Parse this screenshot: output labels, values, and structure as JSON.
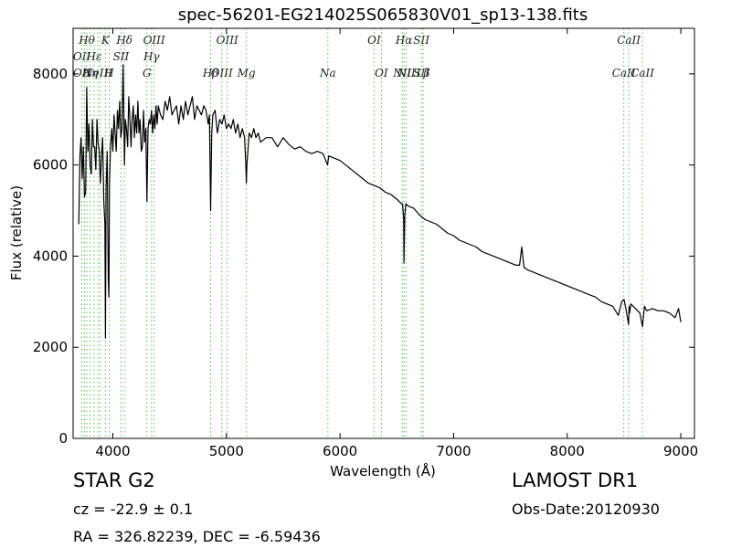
{
  "chart_data": {
    "type": "line",
    "title": "spec-56201-EG214025S065830V01_sp13-138.fits",
    "xlabel": "Wavelength (Å)",
    "ylabel": "Flux (relative)",
    "xlim": [
      3650,
      9120
    ],
    "ylim": [
      0,
      9000
    ],
    "xticks": [
      4000,
      5000,
      6000,
      7000,
      8000,
      9000
    ],
    "yticks": [
      0,
      2000,
      4000,
      6000,
      8000
    ],
    "grid": false,
    "series": [
      {
        "color": "#000000",
        "x": [
          3700,
          3710,
          3720,
          3730,
          3740,
          3750,
          3760,
          3770,
          3780,
          3790,
          3800,
          3810,
          3820,
          3830,
          3840,
          3850,
          3860,
          3870,
          3880,
          3890,
          3900,
          3910,
          3920,
          3930,
          3935,
          3940,
          3950,
          3960,
          3965,
          3970,
          3980,
          3990,
          4000,
          4010,
          4020,
          4030,
          4040,
          4050,
          4060,
          4070,
          4080,
          4090,
          4100,
          4102,
          4110,
          4120,
          4130,
          4140,
          4150,
          4160,
          4170,
          4180,
          4190,
          4200,
          4210,
          4220,
          4230,
          4240,
          4250,
          4260,
          4270,
          4280,
          4290,
          4300,
          4310,
          4320,
          4330,
          4340,
          4350,
          4360,
          4370,
          4380,
          4390,
          4400,
          4420,
          4440,
          4460,
          4480,
          4500,
          4520,
          4540,
          4560,
          4580,
          4600,
          4620,
          4640,
          4660,
          4680,
          4700,
          4720,
          4740,
          4760,
          4780,
          4800,
          4820,
          4840,
          4850,
          4861,
          4870,
          4880,
          4900,
          4920,
          4940,
          4960,
          4980,
          5000,
          5020,
          5040,
          5060,
          5080,
          5100,
          5120,
          5140,
          5160,
          5170,
          5175,
          5180,
          5200,
          5220,
          5240,
          5260,
          5280,
          5300,
          5350,
          5400,
          5450,
          5500,
          5550,
          5600,
          5650,
          5700,
          5750,
          5800,
          5850,
          5890,
          5900,
          5950,
          6000,
          6050,
          6100,
          6150,
          6200,
          6250,
          6300,
          6350,
          6400,
          6450,
          6500,
          6540,
          6550,
          6560,
          6563,
          6570,
          6580,
          6600,
          6650,
          6700,
          6750,
          6800,
          6850,
          6900,
          6950,
          7000,
          7050,
          7100,
          7150,
          7200,
          7250,
          7300,
          7350,
          7400,
          7450,
          7500,
          7550,
          7580,
          7600,
          7620,
          7650,
          7700,
          7750,
          7800,
          7850,
          7900,
          7950,
          8000,
          8050,
          8100,
          8150,
          8200,
          8250,
          8300,
          8350,
          8400,
          8450,
          8480,
          8500,
          8520,
          8540,
          8545,
          8550,
          8560,
          8600,
          8640,
          8662,
          8680,
          8700,
          8750,
          8800,
          8850,
          8900,
          8950,
          8980,
          9000
        ],
        "y": [
          4700,
          6200,
          6600,
          5700,
          6400,
          5300,
          5400,
          7700,
          6300,
          6900,
          6000,
          5800,
          7000,
          6400,
          6400,
          5900,
          7000,
          6500,
          6300,
          5600,
          6200,
          6600,
          5200,
          4700,
          2200,
          5500,
          6300,
          3500,
          3100,
          5600,
          6400,
          6800,
          6300,
          7100,
          6700,
          6300,
          7200,
          6800,
          7400,
          6600,
          6800,
          8200,
          6500,
          6000,
          7000,
          6800,
          6400,
          7500,
          7000,
          6400,
          7000,
          7300,
          6600,
          7100,
          6700,
          7400,
          6700,
          7000,
          6300,
          6400,
          7200,
          6500,
          6800,
          5200,
          6800,
          7000,
          6900,
          7200,
          6700,
          7100,
          6800,
          7300,
          6900,
          7300,
          7100,
          7000,
          7400,
          7200,
          7500,
          7100,
          7200,
          7300,
          6900,
          7300,
          7000,
          7400,
          7100,
          7300,
          7500,
          7000,
          7300,
          7200,
          7100,
          7300,
          7200,
          6900,
          7100,
          5000,
          6700,
          7100,
          7200,
          6700,
          7000,
          6900,
          7100,
          6800,
          6900,
          6800,
          7000,
          6700,
          6900,
          6600,
          6800,
          6600,
          6000,
          5600,
          6000,
          6700,
          6600,
          6800,
          6600,
          6700,
          6500,
          6600,
          6600,
          6400,
          6600,
          6450,
          6350,
          6400,
          6300,
          6250,
          6300,
          6250,
          6000,
          6200,
          6150,
          6100,
          6000,
          5900,
          5800,
          5700,
          5600,
          5550,
          5500,
          5400,
          5350,
          5250,
          5150,
          5150,
          4800,
          3850,
          4900,
          5150,
          5100,
          5050,
          4900,
          4800,
          4750,
          4700,
          4600,
          4500,
          4450,
          4350,
          4300,
          4250,
          4200,
          4100,
          4050,
          4000,
          3950,
          3900,
          3850,
          3800,
          3800,
          4200,
          3750,
          3700,
          3650,
          3600,
          3550,
          3500,
          3450,
          3400,
          3350,
          3300,
          3250,
          3200,
          3150,
          3100,
          3000,
          2950,
          2900,
          2700,
          3000,
          3050,
          2800,
          2500,
          2900,
          2750,
          2950,
          2850,
          2750,
          2450,
          2900,
          2800,
          2850,
          2800,
          2800,
          2750,
          2650,
          2850,
          2550
        ]
      }
    ],
    "lines": [
      {
        "w": 3727,
        "name": "OII",
        "row": 1
      },
      {
        "w": 3727,
        "name": "OII",
        "row": 2
      },
      {
        "w": 3750,
        "name": "",
        "row": 0
      },
      {
        "w": 3771,
        "name": "Hθ",
        "row": 0
      },
      {
        "w": 3798,
        "name": "Hη",
        "row": 2
      },
      {
        "w": 3835,
        "name": "Hε",
        "row": 1
      },
      {
        "w": 3869,
        "name": "NeIII",
        "row": 2
      },
      {
        "w": 3889,
        "name": "",
        "row": 1
      },
      {
        "w": 3934,
        "name": "K",
        "row": 0
      },
      {
        "w": 3968,
        "name": "H",
        "row": 3
      },
      {
        "w": 4072,
        "name": "SII",
        "row": 1
      },
      {
        "w": 4102,
        "name": "Hδ",
        "row": 0
      },
      {
        "w": 4300,
        "name": "G",
        "row": 3
      },
      {
        "w": 4340,
        "name": "Hγ",
        "row": 1
      },
      {
        "w": 4363,
        "name": "OIII",
        "row": 0
      },
      {
        "w": 4861,
        "name": "Hβ",
        "row": 3
      },
      {
        "w": 4959,
        "name": "OIII",
        "row": 2
      },
      {
        "w": 5007,
        "name": "OIII",
        "row": 0
      },
      {
        "w": 5175,
        "name": "Mg",
        "row": 3
      },
      {
        "w": 5893,
        "name": "Na",
        "row": 2
      },
      {
        "w": 6300,
        "name": "OI",
        "row": 0
      },
      {
        "w": 6364,
        "name": "OI",
        "row": 3
      },
      {
        "w": 6548,
        "name": "NII",
        "row": 2
      },
      {
        "w": 6563,
        "name": "Hα",
        "row": 0
      },
      {
        "w": 6583,
        "name": "NII",
        "row": 3
      },
      {
        "w": 6716,
        "name": "SII",
        "row": 0
      },
      {
        "w": 6716,
        "name": "SII",
        "row": 3
      },
      {
        "w": 6731,
        "name": "Lβ",
        "row": 2
      },
      {
        "w": 8498,
        "name": "CaII",
        "row": 2
      },
      {
        "w": 8542,
        "name": "CaII",
        "row": 0
      },
      {
        "w": 8662,
        "name": "CaII",
        "row": 3
      }
    ]
  },
  "footer": {
    "class_label": "STAR   G2",
    "survey": "LAMOST DR1",
    "cz": "cz = -22.9 ± 0.1",
    "obs_date": "Obs-Date:20120930",
    "coords": "RA = 326.82239, DEC = -6.59436"
  }
}
